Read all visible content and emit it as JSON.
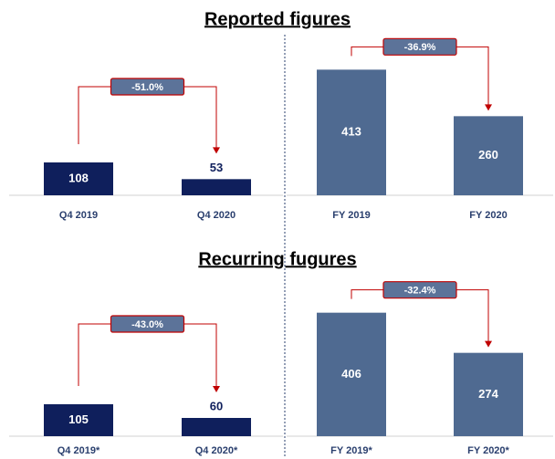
{
  "chart_data": [
    {
      "type": "bar",
      "title": "Reported figures",
      "categories": [
        "Q4 2019",
        "Q4 2020"
      ],
      "values": [
        108,
        53
      ],
      "color": "#0f1f5c",
      "ylim": [
        0,
        450
      ],
      "annotation": "-51.0%"
    },
    {
      "type": "bar",
      "categories": [
        "FY 2019",
        "FY 2020"
      ],
      "values": [
        413,
        260
      ],
      "color": "#4f6a91",
      "ylim": [
        0,
        450
      ],
      "annotation": "-36.9%"
    },
    {
      "type": "bar",
      "title": "Recurring fugures",
      "categories": [
        "Q4 2019*",
        "Q4 2020*"
      ],
      "values": [
        105,
        60
      ],
      "color": "#0f1f5c",
      "ylim": [
        0,
        450
      ],
      "annotation": "-43.0%"
    },
    {
      "type": "bar",
      "categories": [
        "FY 2019*",
        "FY 2020*"
      ],
      "values": [
        406,
        274
      ],
      "color": "#4f6a91",
      "ylim": [
        0,
        450
      ],
      "annotation": "-32.4%"
    }
  ]
}
